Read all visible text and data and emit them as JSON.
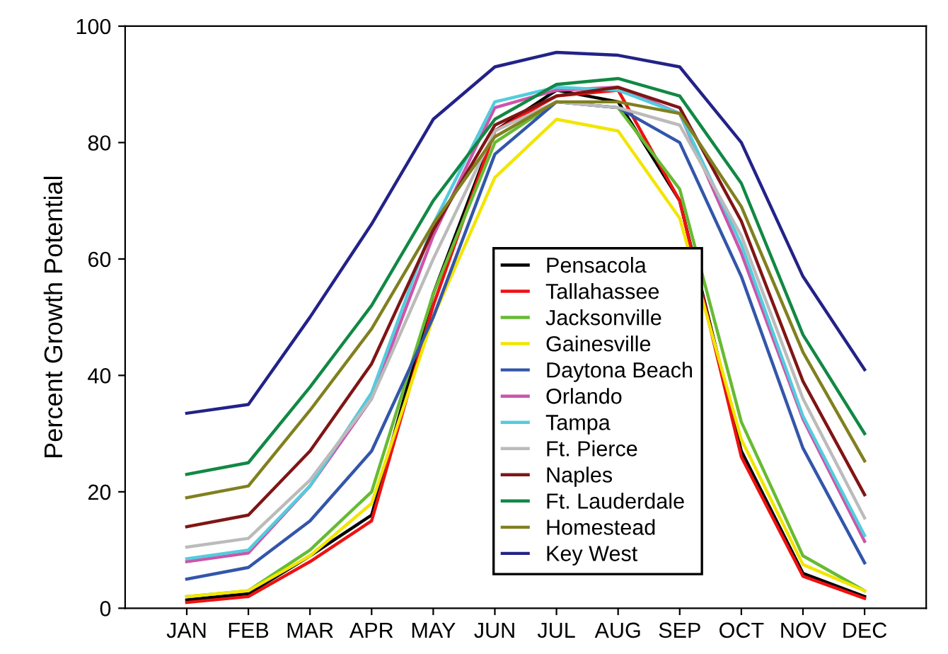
{
  "chart_data": {
    "type": "line",
    "ylabel": "Percent Growth Potential",
    "categories": [
      "JAN",
      "FEB",
      "MAR",
      "APR",
      "MAY",
      "JUN",
      "JUL",
      "AUG",
      "SEP",
      "OCT",
      "NOV",
      "DEC"
    ],
    "ylim": [
      0,
      100
    ],
    "yticks": [
      0,
      20,
      40,
      60,
      80,
      100
    ],
    "grid": false,
    "legend": "bottom",
    "marker": "none",
    "line_style": "solid",
    "series": [
      {
        "name": "Pensacola",
        "color": "#000000",
        "values": [
          1.4,
          2.5,
          9,
          16,
          54,
          82,
          89,
          87,
          70,
          27,
          6,
          2
        ]
      },
      {
        "name": "Tallahassee",
        "color": "#ee1111",
        "values": [
          1,
          2,
          8,
          15,
          52,
          82,
          88,
          89,
          70,
          26,
          5.5,
          1.7
        ]
      },
      {
        "name": "Jacksonville",
        "color": "#66bb33",
        "values": [
          2,
          3,
          10,
          20,
          54,
          80,
          87,
          86,
          72,
          32,
          9,
          3
        ]
      },
      {
        "name": "Gainesville",
        "color": "#f2e600",
        "values": [
          2,
          3,
          9,
          18,
          50,
          74,
          84,
          82,
          67,
          29,
          7.5,
          3
        ]
      },
      {
        "name": "Daytona Beach",
        "color": "#3355aa",
        "values": [
          5,
          7,
          15,
          27,
          50,
          78,
          87,
          86,
          80,
          57,
          27.5,
          7.8
        ]
      },
      {
        "name": "Orlando",
        "color": "#cc55aa",
        "values": [
          8,
          9.5,
          21,
          36,
          64,
          86,
          89,
          89.5,
          85,
          61,
          32.5,
          11.5
        ]
      },
      {
        "name": "Tampa",
        "color": "#55ccdd",
        "values": [
          8.5,
          10,
          21,
          37,
          66,
          87,
          89.5,
          89,
          85,
          62.5,
          33,
          12.5
        ]
      },
      {
        "name": "Ft. Pierce",
        "color": "#bbbbbb",
        "values": [
          10.5,
          12,
          22,
          36,
          60,
          82,
          87,
          86,
          83,
          64,
          36,
          15.5
        ]
      },
      {
        "name": "Naples",
        "color": "#801515",
        "values": [
          14,
          16,
          27,
          42,
          65,
          83,
          88,
          89.5,
          86,
          66.5,
          39,
          19.5
        ]
      },
      {
        "name": "Ft. Lauderdale",
        "color": "#118844",
        "values": [
          23,
          25,
          38,
          52,
          70,
          84,
          90,
          91,
          88,
          73,
          47,
          30
        ]
      },
      {
        "name": "Homestead",
        "color": "#808020",
        "values": [
          19,
          21,
          34,
          48,
          66,
          81,
          87,
          87,
          85,
          69,
          44,
          25.3
        ]
      },
      {
        "name": "Key West",
        "color": "#222288",
        "values": [
          33.5,
          35,
          50,
          66,
          84,
          93,
          95.5,
          95,
          93,
          80,
          57,
          41
        ]
      }
    ]
  }
}
